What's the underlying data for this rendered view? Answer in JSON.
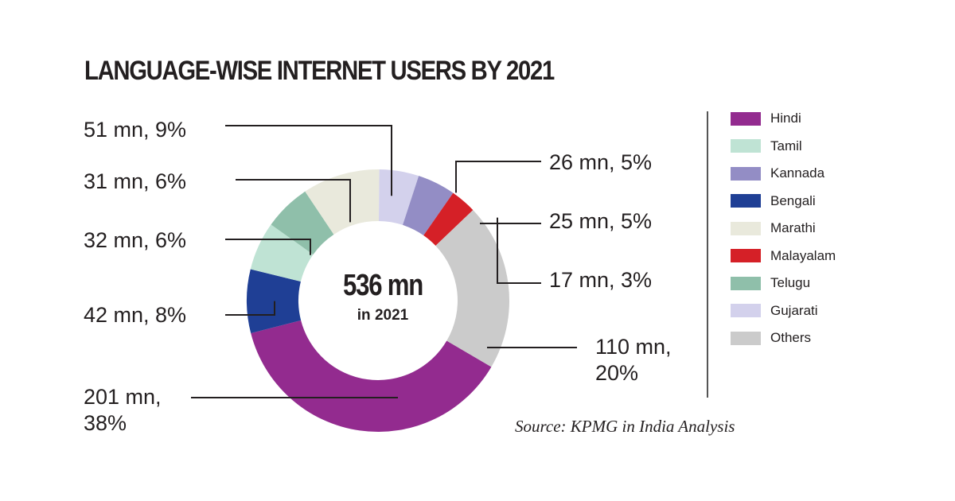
{
  "chart_data": {
    "type": "pie",
    "title": "LANGUAGE-WISE INTERNET USERS BY 2021",
    "center_value": "536 mn",
    "center_caption": "in 2021",
    "source": "Source: KPMG in India Analysis",
    "legend": [
      "Hindi",
      "Tamil",
      "Kannada",
      "Bengali",
      "Marathi",
      "Malayalam",
      "Telugu",
      "Gujarati",
      "Others"
    ],
    "slices": [
      {
        "name": "Hindi",
        "value": 201,
        "percent": 38,
        "label": [
          "201 mn,",
          "38%"
        ],
        "color": "#932b8f"
      },
      {
        "name": "Bengali",
        "value": 42,
        "percent": 8,
        "label": [
          "42 mn, 8%"
        ],
        "color": "#1f3f95"
      },
      {
        "name": "Tamil",
        "value": 32,
        "percent": 6,
        "label": [
          "32 mn, 6%"
        ],
        "color": "#bfe3d4"
      },
      {
        "name": "Telugu",
        "value": 31,
        "percent": 6,
        "label": [
          "31 mn, 6%"
        ],
        "color": "#8fbfaa"
      },
      {
        "name": "Marathi",
        "value": 51,
        "percent": 9,
        "label": [
          "51 mn, 9%"
        ],
        "color": "#e9e9dc"
      },
      {
        "name": "Gujarati",
        "value": 26,
        "percent": 5,
        "label": [
          "26 mn, 5%"
        ],
        "color": "#d3d1ec"
      },
      {
        "name": "Kannada",
        "value": 25,
        "percent": 5,
        "label": [
          "25 mn, 5%"
        ],
        "color": "#938dc5"
      },
      {
        "name": "Malayalam",
        "value": 17,
        "percent": 3,
        "label": [
          "17 mn, 3%"
        ],
        "color": "#d52027"
      },
      {
        "name": "Others",
        "value": 110,
        "percent": 20,
        "label": [
          "110 mn,",
          "20%"
        ],
        "color": "#cbcbcb"
      }
    ]
  }
}
